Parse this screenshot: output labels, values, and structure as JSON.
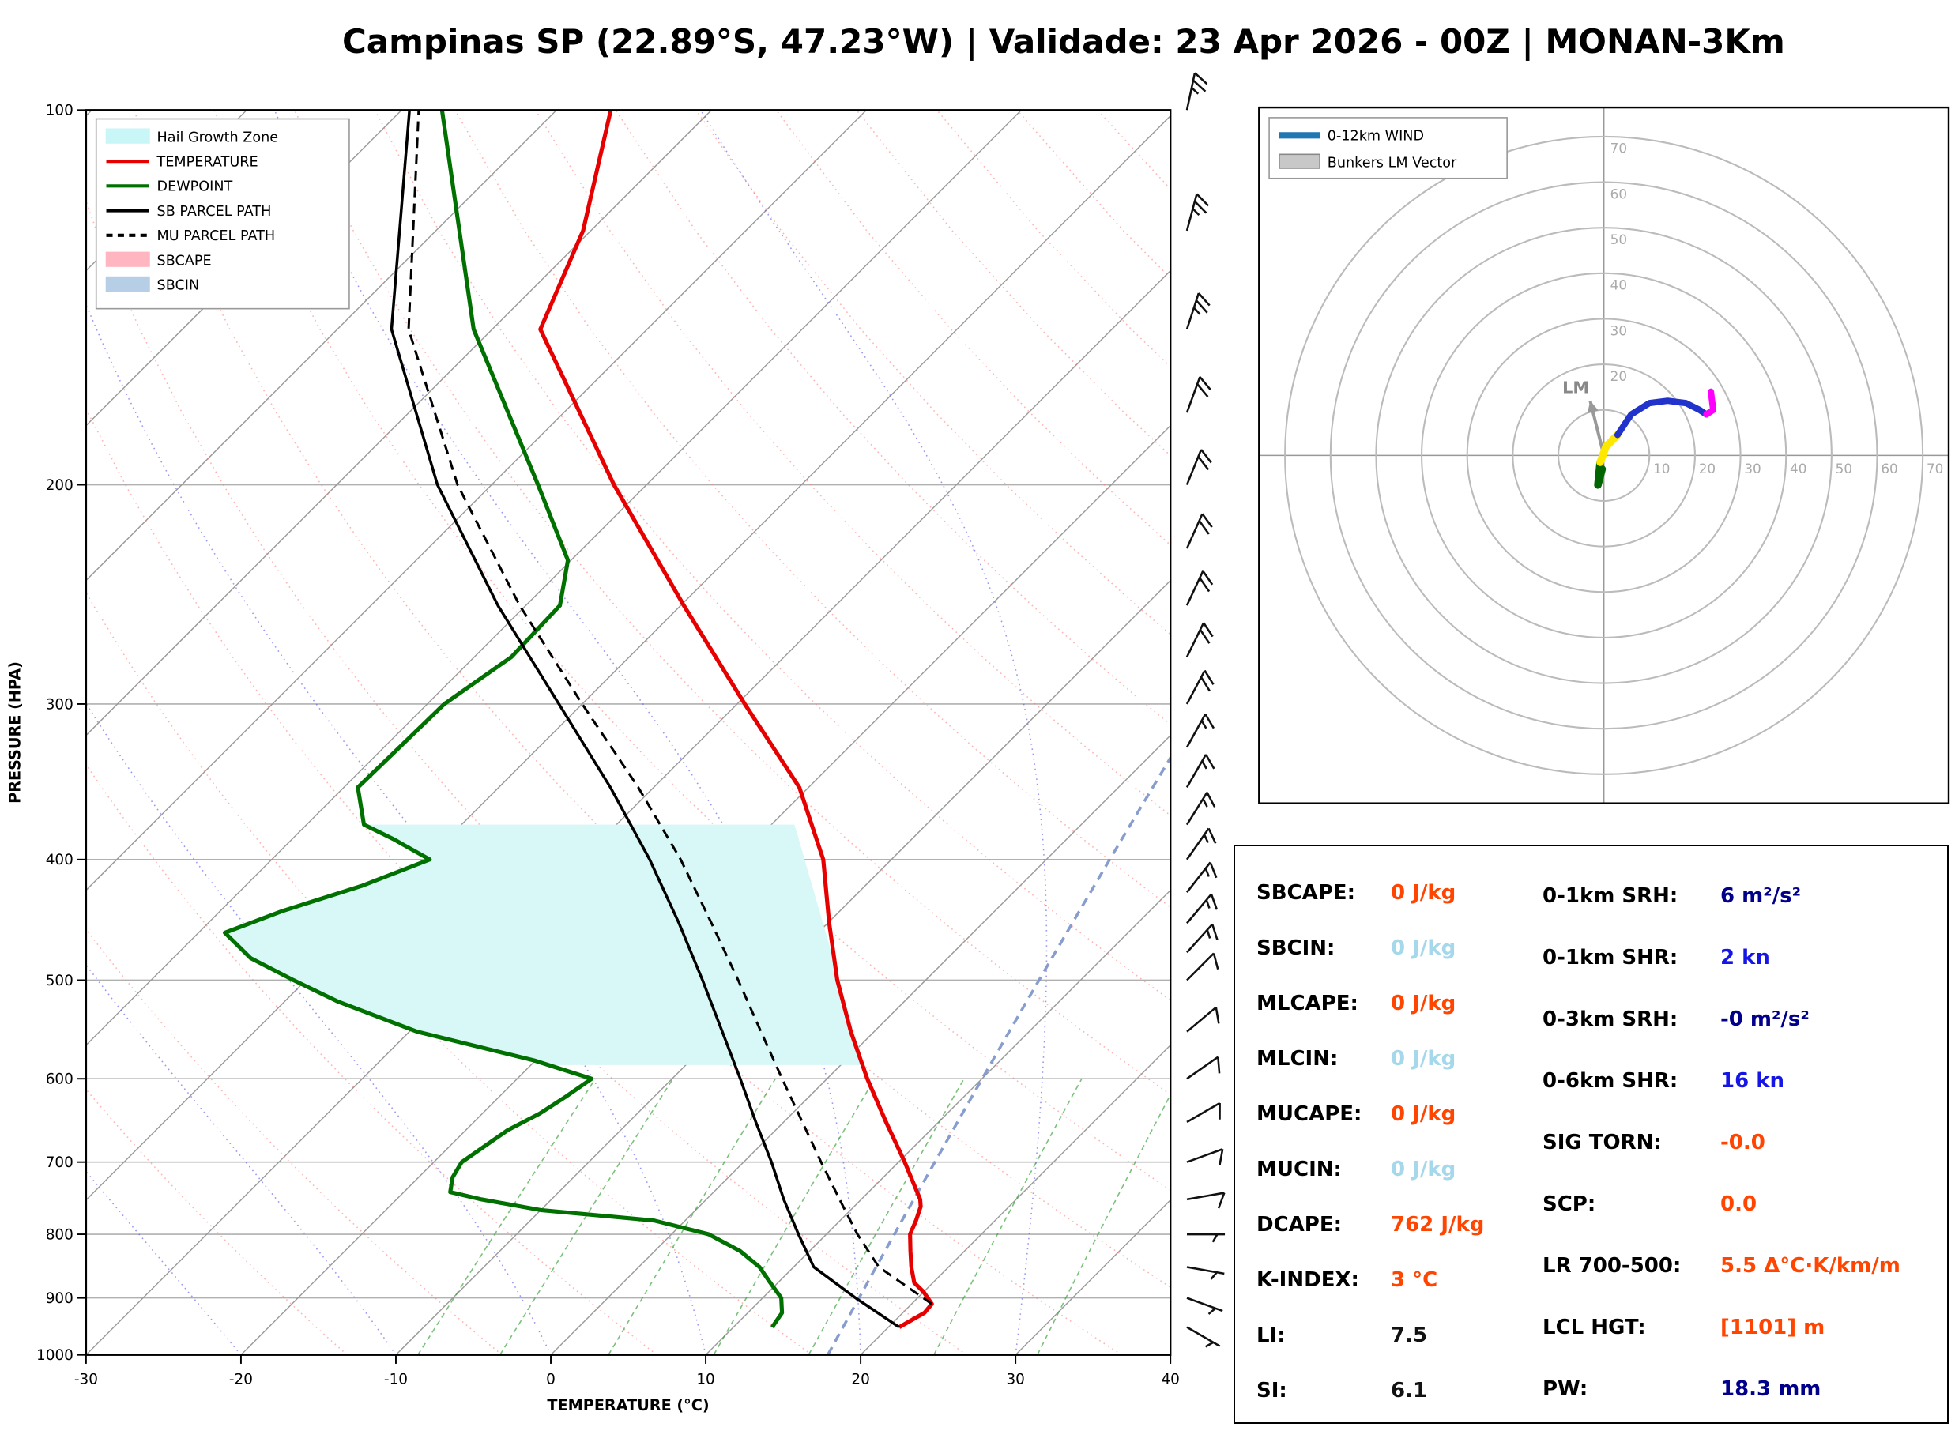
{
  "title": "Campinas SP (22.89°S, 47.23°W) | Validade: 23 Apr 2026 - 00Z | MONAN-3Km",
  "chart_data": [
    {
      "id": "skewt",
      "type": "line",
      "xlabel": "TEMPERATURE (°C)",
      "ylabel": "PRESSURE (HPA)",
      "x_range": [
        -30,
        40
      ],
      "p_range": [
        100,
        1000
      ],
      "x_ticks": [
        -30,
        -20,
        -10,
        0,
        10,
        20,
        30,
        40
      ],
      "p_ticks": [
        100,
        200,
        300,
        400,
        500,
        600,
        700,
        800,
        900,
        1000
      ],
      "skew_deg": 45,
      "legend": [
        {
          "label": "Hail Growth Zone",
          "type": "patch",
          "color": "#c9f6f6"
        },
        {
          "label": "TEMPERATURE",
          "type": "line",
          "color": "#e60000"
        },
        {
          "label": "DEWPOINT",
          "type": "line",
          "color": "#007000"
        },
        {
          "label": "SB PARCEL PATH",
          "type": "line",
          "color": "#000000"
        },
        {
          "label": "MU PARCEL PATH",
          "type": "dashed",
          "color": "#000000"
        },
        {
          "label": "SBCAPE",
          "type": "patch",
          "color": "#ffb6c1"
        },
        {
          "label": "SBCIN",
          "type": "patch",
          "color": "#b7cfe6"
        }
      ],
      "series": [
        {
          "name": "TEMPERATURE",
          "color": "#e60000",
          "width": 3.2,
          "dash": null,
          "points": [
            [
              950,
              20.7
            ],
            [
              925,
              21.4
            ],
            [
              910,
              21.3
            ],
            [
              890,
              20.0
            ],
            [
              875,
              18.8
            ],
            [
              850,
              17.6
            ],
            [
              825,
              16.5
            ],
            [
              800,
              15.4
            ],
            [
              780,
              14.9
            ],
            [
              760,
              14.3
            ],
            [
              750,
              13.8
            ],
            [
              700,
              10.4
            ],
            [
              650,
              6.6
            ],
            [
              600,
              2.6
            ],
            [
              550,
              -1.5
            ],
            [
              500,
              -5.7
            ],
            [
              450,
              -9.9
            ],
            [
              400,
              -14.4
            ],
            [
              350,
              -20.6
            ],
            [
              300,
              -29.5
            ],
            [
              250,
              -39.8
            ],
            [
              200,
              -52.1
            ],
            [
              150,
              -66.9
            ],
            [
              125,
              -70.5
            ],
            [
              100,
              -76.5
            ]
          ]
        },
        {
          "name": "DEWPOINT",
          "color": "#007000",
          "width": 3.2,
          "dash": null,
          "points": [
            [
              950,
              12.5
            ],
            [
              925,
              12.2
            ],
            [
              900,
              11.2
            ],
            [
              875,
              9.5
            ],
            [
              850,
              7.8
            ],
            [
              825,
              5.5
            ],
            [
              800,
              2.4
            ],
            [
              780,
              -2.0
            ],
            [
              765,
              -10.0
            ],
            [
              750,
              -14.5
            ],
            [
              740,
              -17.0
            ],
            [
              720,
              -17.8
            ],
            [
              700,
              -18.2
            ],
            [
              660,
              -17.3
            ],
            [
              640,
              -16.3
            ],
            [
              620,
              -15.7
            ],
            [
              600,
              -15.2
            ],
            [
              580,
              -20.1
            ],
            [
              550,
              -29.5
            ],
            [
              520,
              -36.6
            ],
            [
              500,
              -40.8
            ],
            [
              480,
              -45.0
            ],
            [
              458,
              -48.3
            ],
            [
              440,
              -46.0
            ],
            [
              420,
              -42.5
            ],
            [
              400,
              -39.8
            ],
            [
              385,
              -43.5
            ],
            [
              375,
              -46.3
            ],
            [
              350,
              -49.1
            ],
            [
              325,
              -49.0
            ],
            [
              300,
              -48.9
            ],
            [
              275,
              -47.6
            ],
            [
              250,
              -47.8
            ],
            [
              230,
              -50.2
            ],
            [
              200,
              -57.0
            ],
            [
              150,
              -71.2
            ],
            [
              100,
              -87.4
            ]
          ]
        },
        {
          "name": "SB PARCEL PATH",
          "color": "#000000",
          "width": 2.2,
          "dash": null,
          "points": [
            [
              950,
              20.7
            ],
            [
              900,
              16.0
            ],
            [
              850,
              11.3
            ],
            [
              800,
              8.2
            ],
            [
              750,
              5.0
            ],
            [
              700,
              1.8
            ],
            [
              650,
              -1.8
            ],
            [
              600,
              -5.6
            ],
            [
              550,
              -9.8
            ],
            [
              500,
              -14.4
            ],
            [
              450,
              -19.6
            ],
            [
              400,
              -25.6
            ],
            [
              350,
              -32.8
            ],
            [
              300,
              -41.5
            ],
            [
              250,
              -51.8
            ],
            [
              200,
              -63.5
            ],
            [
              150,
              -76.5
            ],
            [
              100,
              -89.5
            ]
          ]
        },
        {
          "name": "MU PARCEL PATH",
          "color": "#000000",
          "width": 1.9,
          "dash": "8,5",
          "points": [
            [
              910,
              21.3
            ],
            [
              850,
              15.5
            ],
            [
              800,
              12.0
            ],
            [
              750,
              8.6
            ],
            [
              700,
              5.0
            ],
            [
              650,
              1.2
            ],
            [
              600,
              -2.9
            ],
            [
              550,
              -7.3
            ],
            [
              500,
              -12.1
            ],
            [
              450,
              -17.5
            ],
            [
              400,
              -23.6
            ],
            [
              350,
              -31.0
            ],
            [
              300,
              -40.0
            ],
            [
              250,
              -50.4
            ],
            [
              200,
              -62.2
            ],
            [
              150,
              -75.4
            ],
            [
              100,
              -88.9
            ]
          ]
        }
      ],
      "hail_zone": {
        "p_top": 375,
        "p_bottom": 585,
        "right_T_top": -18.5,
        "right_T_bottom": 1.5,
        "color": "#d8f8f8"
      },
      "wind_barbs": [
        [
          100,
          25,
          12
        ],
        [
          125,
          25,
          15
        ],
        [
          150,
          25,
          18
        ],
        [
          175,
          22,
          20
        ],
        [
          200,
          22,
          22
        ],
        [
          225,
          20,
          24
        ],
        [
          250,
          20,
          25
        ],
        [
          275,
          18,
          26
        ],
        [
          300,
          18,
          28
        ],
        [
          325,
          16,
          29
        ],
        [
          350,
          16,
          30
        ],
        [
          375,
          15,
          32
        ],
        [
          400,
          15,
          35
        ],
        [
          425,
          14,
          38
        ],
        [
          450,
          14,
          40
        ],
        [
          475,
          13,
          42
        ],
        [
          500,
          12,
          45
        ],
        [
          550,
          11,
          50
        ],
        [
          600,
          10,
          55
        ],
        [
          650,
          9,
          60
        ],
        [
          700,
          8,
          70
        ],
        [
          750,
          8,
          80
        ],
        [
          800,
          7,
          90
        ],
        [
          850,
          6,
          100
        ],
        [
          900,
          5,
          110
        ],
        [
          950,
          4,
          120
        ]
      ],
      "background": {
        "isotherm_step": 10,
        "dry_adiabats_K": [
          260,
          270,
          280,
          290,
          300,
          310,
          320,
          330,
          340,
          350,
          360,
          370,
          380,
          390,
          400,
          410,
          420,
          430,
          440
        ],
        "moist_start_temps_C": [
          -60,
          -50,
          -40,
          -30,
          -20,
          -10,
          0,
          10,
          20,
          30,
          40
        ],
        "mixing_ratios_gkg": [
          2,
          3,
          5,
          8,
          12,
          20,
          30
        ],
        "mixing_ratio_top_p": 590,
        "highlight_mixing_ratio_gkg": 13,
        "colors": {
          "isotherm": "#9a9a9a",
          "dry": "#ff7777",
          "moist": "#5555ee",
          "mixing": "#33a033",
          "highlight": "#7a92c8",
          "grid": "#b0b0b0"
        }
      }
    },
    {
      "id": "hodograph",
      "type": "line",
      "rings_kn": [
        10,
        20,
        30,
        40,
        50,
        60,
        70
      ],
      "x_ring_labels": [
        10,
        20,
        30,
        40,
        50,
        60,
        70
      ],
      "y_ring_labels": [
        20,
        30,
        40,
        50,
        60,
        70
      ],
      "legend": [
        {
          "label": "0-12km WIND",
          "type": "line",
          "color": "#1f77b4"
        },
        {
          "label": "Bunkers LM Vector",
          "type": "patch",
          "color": "#c8c8c8"
        }
      ],
      "segments": [
        {
          "name": "near-surface",
          "color": "#006400",
          "width": 6,
          "points": [
            [
              -0.8,
              -1.5
            ],
            [
              -1.3,
              -6.5
            ],
            [
              -0.4,
              -3.0
            ]
          ]
        },
        {
          "name": "low-level",
          "color": "#ffe800",
          "width": 6,
          "points": [
            [
              -0.8,
              -1.5
            ],
            [
              0.5,
              2.0
            ],
            [
              3.0,
              4.5
            ]
          ]
        },
        {
          "name": "mid-level",
          "color": "#2233cc",
          "width": 5,
          "points": [
            [
              3.0,
              4.5
            ],
            [
              6.0,
              9.0
            ],
            [
              10.0,
              11.5
            ],
            [
              14.0,
              12.0
            ],
            [
              18.0,
              11.5
            ],
            [
              21.0,
              10.0
            ],
            [
              22.5,
              9.0
            ]
          ]
        },
        {
          "name": "upper-level",
          "color": "#ff00ff",
          "width": 5,
          "points": [
            [
              22.5,
              9.0
            ],
            [
              24.0,
              10.0
            ],
            [
              23.5,
              14.0
            ]
          ]
        }
      ],
      "lm_vector": {
        "u": -3,
        "v": 12,
        "label": "LM",
        "color": "#999999"
      }
    },
    {
      "id": "indices",
      "type": "table",
      "left": [
        {
          "label": "SBCAPE:",
          "value": "0 J/kg",
          "c": "orange"
        },
        {
          "label": "SBCIN:",
          "value": "0 J/kg",
          "c": "lightblue"
        },
        {
          "label": "MLCAPE:",
          "value": "0 J/kg",
          "c": "orange"
        },
        {
          "label": "MLCIN:",
          "value": "0 J/kg",
          "c": "lightblue"
        },
        {
          "label": "MUCAPE:",
          "value": "0 J/kg",
          "c": "orange"
        },
        {
          "label": "MUCIN:",
          "value": "0 J/kg",
          "c": "lightblue"
        },
        {
          "label": "DCAPE:",
          "value": "762 J/kg",
          "c": "orange"
        },
        {
          "label": "K-INDEX:",
          "value": "3 °C",
          "c": "orange"
        },
        {
          "label": "LI:",
          "value": "7.5",
          "c": "black"
        },
        {
          "label": "SI:",
          "value": "6.1",
          "c": "black"
        }
      ],
      "right": [
        {
          "label": "0-1km SRH:",
          "value": "6 m²/s²",
          "c": "navy"
        },
        {
          "label": "0-1km SHR:",
          "value": "2 kn",
          "c": "blue"
        },
        {
          "label": "0-3km SRH:",
          "value": "-0 m²/s²",
          "c": "navy"
        },
        {
          "label": "0-6km SHR:",
          "value": "16 kn",
          "c": "blue"
        },
        {
          "label": "SIG TORN:",
          "value": "-0.0",
          "c": "orange"
        },
        {
          "label": "SCP:",
          "value": "0.0",
          "c": "orange"
        },
        {
          "label": "LR 700-500:",
          "value": "5.5 Δ°C·K/km/m",
          "c": "orange"
        },
        {
          "label": "LCL HGT:",
          "value": "[1101] m",
          "c": "orange"
        },
        {
          "label": "PW:",
          "value": "18.3 mm",
          "c": "navy"
        }
      ]
    }
  ]
}
